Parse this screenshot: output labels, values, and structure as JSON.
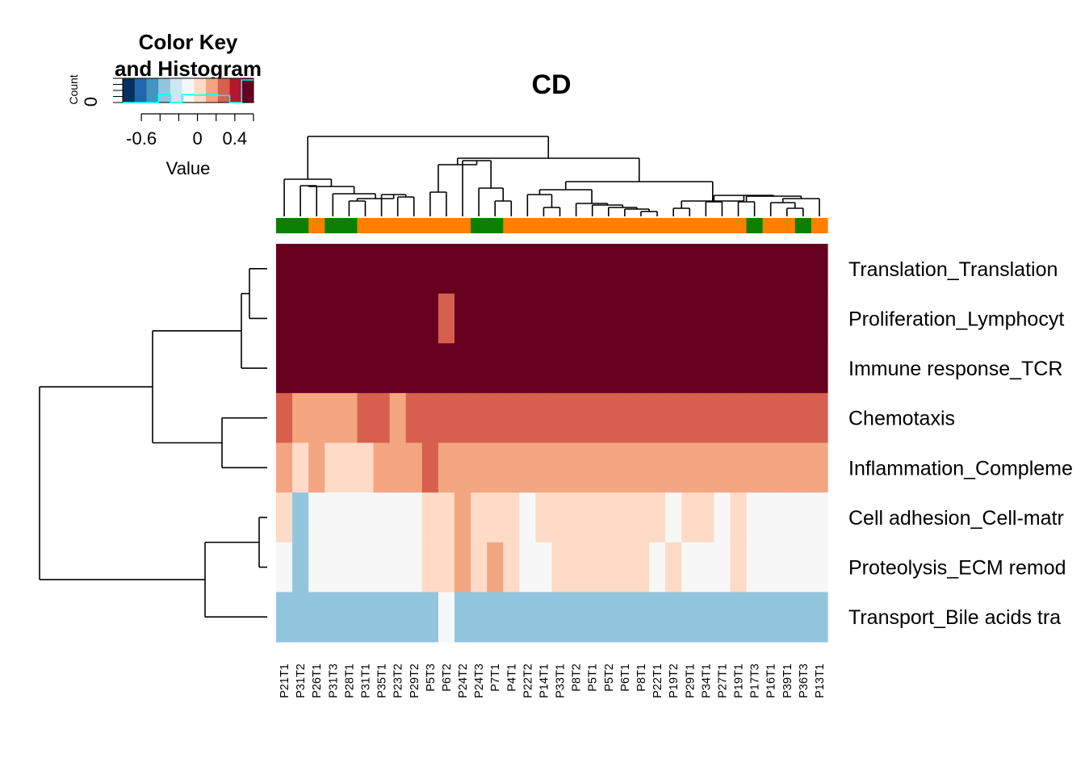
{
  "chart_data": {
    "type": "heatmap",
    "title": "CD",
    "color_key": {
      "title_line1": "Color Key",
      "title_line2": "and Histogram",
      "xlabel": "Value",
      "ylabel": "Count",
      "y_tick": "0",
      "tick_labels": [
        "-0.6",
        "0",
        "0.4"
      ],
      "tick_values": [
        -0.6,
        0,
        0.4
      ],
      "range": [
        -0.8,
        0.6
      ],
      "colors": [
        "#053061",
        "#2166ac",
        "#4393c3",
        "#92c5de",
        "#d1e5f0",
        "#f7f7f7",
        "#fddbc7",
        "#f4a582",
        "#d6604d",
        "#b2182b",
        "#67001f"
      ],
      "histogram_color": "#00ffff"
    },
    "rows": [
      "Translation_Translation",
      "Proliferation_Lymphocyt",
      "Immune response_TCR",
      "Chemotaxis",
      "Inflammation_Compleme",
      "Cell adhesion_Cell-matr",
      "Proteolysis_ECM remod",
      "Transport_Bile acids tra"
    ],
    "columns": [
      "P21T1",
      "P31T2",
      "P26T1",
      "P31T3",
      "P28T1",
      "P31T1",
      "P35T1",
      "P23T2",
      "P29T2",
      "P5T3",
      "P6T2",
      "P24T2",
      "P24T3",
      "P7T1",
      "P4T1",
      "P22T2",
      "P14T1",
      "P33T1",
      "P8T2",
      "P5T1",
      "P5T2",
      "P6T1",
      "P8T1",
      "P22T1",
      "P19T2",
      "P29T1",
      "P34T1",
      "P27T1",
      "P19T1",
      "P17T3",
      "P16T1",
      "P39T1",
      "P36T3",
      "P13T1"
    ],
    "column_groups": [
      "g",
      "g",
      "o",
      "g",
      "g",
      "o",
      "o",
      "o",
      "o",
      "o",
      "o",
      "o",
      "g",
      "g",
      "o",
      "o",
      "o",
      "o",
      "o",
      "o",
      "o",
      "o",
      "o",
      "o",
      "o",
      "o",
      "o",
      "o",
      "o",
      "g",
      "o",
      "o",
      "g",
      "o"
    ],
    "group_colors": {
      "g": "#0a7f00",
      "o": "#ff8000"
    },
    "values": [
      [
        0.5,
        0.5,
        0.6,
        0.5,
        0.5,
        0.6,
        0.5,
        0.6,
        0.6,
        0.6,
        0.6,
        0.5,
        0.5,
        0.5,
        0.6,
        0.6,
        0.6,
        0.5,
        0.6,
        0.5,
        0.5,
        0.5,
        0.5,
        0.5,
        0.5,
        0.5,
        0.5,
        0.6,
        0.6,
        0.6,
        0.6,
        0.6,
        0.6,
        0.6
      ],
      [
        0.6,
        0.6,
        0.5,
        0.6,
        0.6,
        0.6,
        0.6,
        0.6,
        0.6,
        0.5,
        0.3,
        0.6,
        0.6,
        0.6,
        0.5,
        0.5,
        0.5,
        0.5,
        0.5,
        0.6,
        0.5,
        0.5,
        0.6,
        0.6,
        0.6,
        0.6,
        0.6,
        0.6,
        0.5,
        0.5,
        0.5,
        0.5,
        0.6,
        0.6
      ],
      [
        0.6,
        0.6,
        0.6,
        0.6,
        0.6,
        0.6,
        0.6,
        0.6,
        0.6,
        0.5,
        0.5,
        0.6,
        0.6,
        0.6,
        0.6,
        0.6,
        0.6,
        0.6,
        0.6,
        0.6,
        0.6,
        0.6,
        0.6,
        0.6,
        0.6,
        0.6,
        0.6,
        0.6,
        0.6,
        0.6,
        0.6,
        0.6,
        0.6,
        0.6
      ],
      [
        0.3,
        0.2,
        0.2,
        0.2,
        0.2,
        0.3,
        0.3,
        0.2,
        0.3,
        0.3,
        0.3,
        0.3,
        0.3,
        0.3,
        0.3,
        0.3,
        0.3,
        0.3,
        0.3,
        0.3,
        0.3,
        0.3,
        0.3,
        0.3,
        0.3,
        0.3,
        0.3,
        0.3,
        0.3,
        0.3,
        0.3,
        0.3,
        0.3,
        0.3
      ],
      [
        0.1,
        0.0,
        0.1,
        0.0,
        0.0,
        0.0,
        0.1,
        0.1,
        0.1,
        0.3,
        0.2,
        0.2,
        0.2,
        0.2,
        0.1,
        0.2,
        0.2,
        0.2,
        0.2,
        0.2,
        0.2,
        0.2,
        0.2,
        0.1,
        0.1,
        0.1,
        0.1,
        0.2,
        0.2,
        0.1,
        0.1,
        0.1,
        0.1,
        0.1
      ],
      [
        0.0,
        -0.3,
        -0.1,
        -0.1,
        -0.1,
        -0.1,
        -0.1,
        -0.1,
        -0.1,
        0.0,
        0.0,
        0.1,
        0.0,
        0.0,
        0.0,
        -0.1,
        0.0,
        0.0,
        0.0,
        0.0,
        0.0,
        0.0,
        0.0,
        0.0,
        -0.1,
        0.0,
        0.0,
        -0.1,
        0.0,
        -0.1,
        -0.1,
        -0.1,
        -0.1,
        -0.1
      ],
      [
        -0.1,
        -0.3,
        -0.1,
        -0.1,
        -0.1,
        -0.1,
        -0.1,
        -0.1,
        -0.1,
        0.0,
        0.0,
        0.1,
        0.0,
        0.1,
        0.0,
        -0.1,
        -0.1,
        0.0,
        0.0,
        0.0,
        0.0,
        0.0,
        0.0,
        -0.1,
        0.0,
        -0.1,
        -0.1,
        -0.1,
        0.0,
        -0.1,
        -0.1,
        -0.1,
        -0.1,
        -0.1
      ],
      [
        -0.3,
        -0.3,
        -0.3,
        -0.3,
        -0.4,
        -0.4,
        -0.3,
        -0.4,
        -0.4,
        -0.3,
        -0.1,
        -0.4,
        -0.4,
        -0.4,
        -0.4,
        -0.3,
        -0.3,
        -0.4,
        -0.3,
        -0.3,
        -0.4,
        -0.3,
        -0.3,
        -0.4,
        -0.4,
        -0.4,
        -0.3,
        -0.4,
        -0.4,
        -0.4,
        -0.3,
        -0.4,
        -0.4,
        -0.4
      ]
    ],
    "legend": false,
    "grid": false
  }
}
